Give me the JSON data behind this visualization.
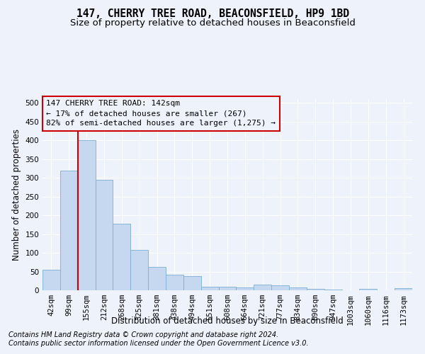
{
  "title": "147, CHERRY TREE ROAD, BEACONSFIELD, HP9 1BD",
  "subtitle": "Size of property relative to detached houses in Beaconsfield",
  "xlabel": "Distribution of detached houses by size in Beaconsfield",
  "ylabel": "Number of detached properties",
  "footer_line1": "Contains HM Land Registry data © Crown copyright and database right 2024.",
  "footer_line2": "Contains public sector information licensed under the Open Government Licence v3.0.",
  "annotation_line1": "147 CHERRY TREE ROAD: 142sqm",
  "annotation_line2": "← 17% of detached houses are smaller (267)",
  "annotation_line3": "82% of semi-detached houses are larger (1,275) →",
  "bar_labels": [
    "42sqm",
    "99sqm",
    "155sqm",
    "212sqm",
    "268sqm",
    "325sqm",
    "381sqm",
    "438sqm",
    "494sqm",
    "551sqm",
    "608sqm",
    "664sqm",
    "721sqm",
    "777sqm",
    "834sqm",
    "890sqm",
    "947sqm",
    "1003sqm",
    "1060sqm",
    "1116sqm",
    "1173sqm"
  ],
  "bar_values": [
    55,
    320,
    400,
    295,
    177,
    107,
    62,
    41,
    37,
    10,
    10,
    7,
    15,
    14,
    8,
    4,
    2,
    0,
    3,
    0,
    5
  ],
  "bar_color": "#c5d8f0",
  "bar_edge_color": "#7bafd4",
  "vline_color": "#cc0000",
  "vline_index": 1.5,
  "ylim": [
    0,
    510
  ],
  "yticks": [
    0,
    50,
    100,
    150,
    200,
    250,
    300,
    350,
    400,
    450,
    500
  ],
  "bg_color": "#eef2fb",
  "grid_color": "#ffffff",
  "annotation_box_color": "#cc0000",
  "title_fontsize": 10.5,
  "subtitle_fontsize": 9.5,
  "axis_label_fontsize": 8.5,
  "tick_fontsize": 7.5,
  "annotation_fontsize": 8,
  "footer_fontsize": 7
}
